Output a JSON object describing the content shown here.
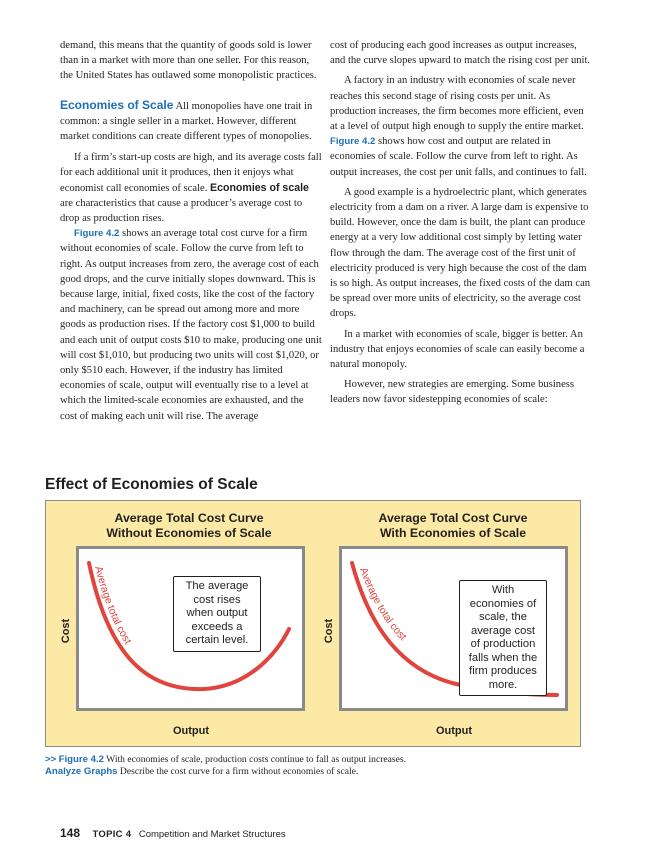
{
  "left_column": {
    "p1": "demand, this means that the quantity of goods sold is lower than in a market with more than one seller. For this reason, the United States has outlawed some monopolistic practices.",
    "heading": "Economies of Scale",
    "p2": " All monopolies have one trait in common: a single seller in a market. However, different market conditions can create different types of monopolies.",
    "p3": "If a firm’s start-up costs are high, and its average costs fall for each additional unit it produces, then it enjoys what economist call economies of scale. ",
    "p3_term": "Economies of scale",
    "p3_rest": " are characteristics that cause a producer’s average cost to drop as production rises.",
    "p4_ref": "Figure 4.2",
    "p4": " shows an average total cost curve for a firm without economies of scale. Follow the curve from left to right. As output increases from zero, the average cost of each good drops, and the curve initially slopes downward. This is because large, initial, fixed costs, like the cost of the factory and machinery, can be spread out among more and more goods as production rises. If the factory cost $1,000 to build and each unit of output costs $10 to make, producing one unit will cost $1,010, but producing two units will cost $1,020, or only $510 each. However, if the industry has limited economies of scale, output will eventually rise to a level at which the limited-scale economies are exhausted, and the cost of making each unit will rise. The average"
  },
  "right_column": {
    "p1": "cost of producing each good increases as output increases, and the curve slopes upward to match the rising cost per unit.",
    "p2a": "A factory in an industry with economies of scale never reaches this second stage of rising costs per unit. As production increases, the firm becomes more efficient, even at a level of output high enough to supply the entire market. ",
    "p2_ref": "Figure 4.2",
    "p2b": " shows how cost and output are related in economies of scale. Follow the curve from left to right. As output increases, the cost per unit falls, and continues to fall.",
    "p3": "A good example is a hydroelectric plant, which generates electricity from a dam on a river. A large dam is expensive to build. However, once the dam is built, the plant can produce energy at a very low additional cost simply by letting water flow through the dam. The average cost of the first unit of electricity produced is very high because the cost of the dam is so high. As output increases, the fixed costs of the dam can be spread over more units of electricity, so the average cost drops.",
    "p4": "In a market with economies of scale, bigger is better. An industry that enjoys economies of scale can easily become a natural monopoly.",
    "p5": "However, new strategies are emerging. Some business leaders now favor sidestepping economies of scale:"
  },
  "figure": {
    "title": "Effect of Economies of Scale",
    "panel_color": "#fbe9a5",
    "curve_color": "#e0443c",
    "charts": [
      {
        "title_line1": "Average Total Cost Curve",
        "title_line2": "Without Economies of Scale",
        "y_label": "Cost",
        "x_label": "Output",
        "curve_label": "Average total cost",
        "callout": "The average cost rises when output exceeds a certain level."
      },
      {
        "title_line1": "Average Total Cost Curve",
        "title_line2": "With Economies of Scale",
        "y_label": "Cost",
        "x_label": "Output",
        "curve_label": "Average total cost",
        "callout": "With economies of scale, the average cost of production falls when the firm produces more."
      }
    ],
    "caption_arrow": ">>",
    "caption_ref": "Figure 4.2",
    "caption_text": " With economies of scale, production costs continue to fall as output increases. ",
    "caption_label": "Analyze Graphs",
    "caption_question": " Describe the cost curve for a firm without economies of scale."
  },
  "footer": {
    "page_number": "148",
    "topic_label": "TOPIC 4",
    "topic_title": "Competition and Market Structures"
  }
}
